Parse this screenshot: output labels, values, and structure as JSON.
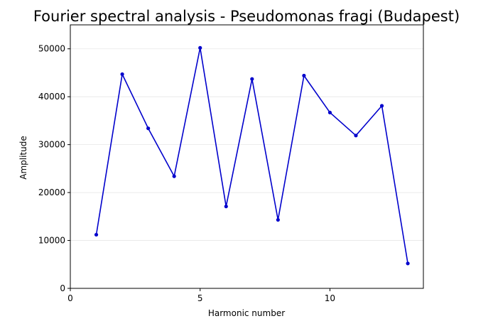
{
  "chart_data": {
    "type": "line",
    "title": "Fourier spectral analysis - Pseudomonas fragi (Budapest)",
    "xlabel": "Harmonic number",
    "ylabel": "Amplitude",
    "xlim": [
      0,
      13.6
    ],
    "ylim": [
      0,
      55000
    ],
    "xticks": [
      0,
      5,
      10
    ],
    "yticks": [
      0,
      10000,
      20000,
      30000,
      40000,
      50000
    ],
    "grid": "horizontal",
    "legend": "none",
    "series": [
      {
        "color": "#0000cc",
        "x": [
          1,
          2,
          3,
          4,
          5,
          6,
          7,
          8,
          9,
          10,
          11,
          12,
          13
        ],
        "y": [
          11200,
          44700,
          33400,
          23400,
          50200,
          17100,
          43700,
          14300,
          44400,
          36700,
          31900,
          38100,
          5200
        ]
      }
    ]
  }
}
